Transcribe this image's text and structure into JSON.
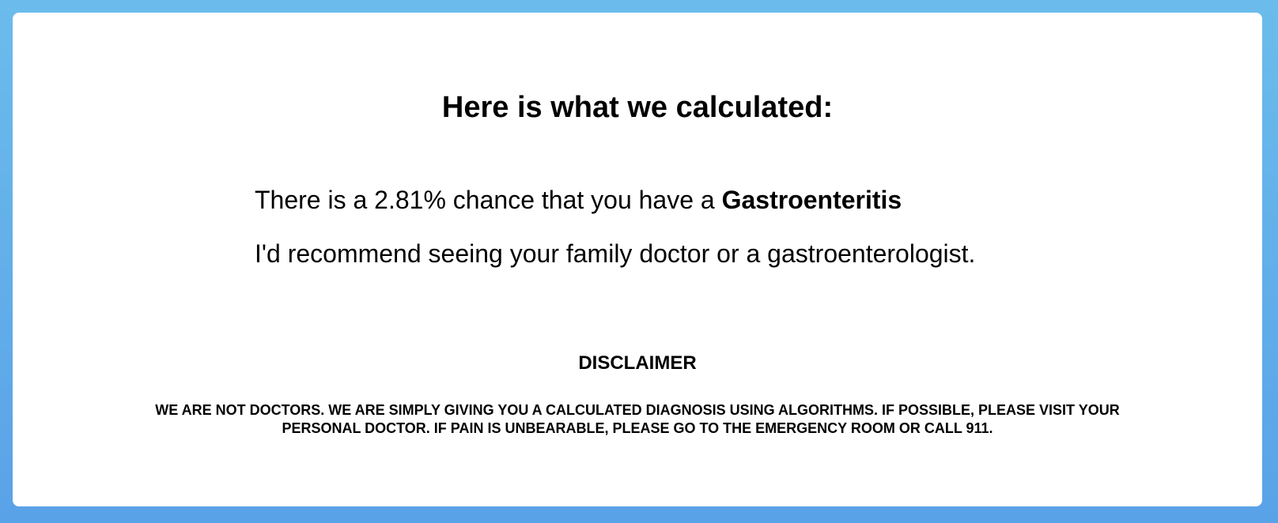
{
  "colors": {
    "background_top": "#6bbcec",
    "background_bottom": "#5aa2e8",
    "card": "#ffffff",
    "text": "#000000"
  },
  "result": {
    "heading": "Here is what we calculated:",
    "chance_prefix": "There is a 2.81% chance that you have a ",
    "diagnosis": "Gastroenteritis",
    "recommendation": "I'd recommend seeing your family doctor or a gastroenterologist."
  },
  "disclaimer": {
    "title": "DISCLAIMER",
    "text": "WE ARE NOT DOCTORS. WE ARE SIMPLY GIVING YOU A CALCULATED DIAGNOSIS USING ALGORITHMS. IF POSSIBLE, PLEASE VISIT YOUR PERSONAL DOCTOR. IF PAIN IS UNBEARABLE, PLEASE GO TO THE EMERGENCY ROOM OR CALL 911."
  }
}
